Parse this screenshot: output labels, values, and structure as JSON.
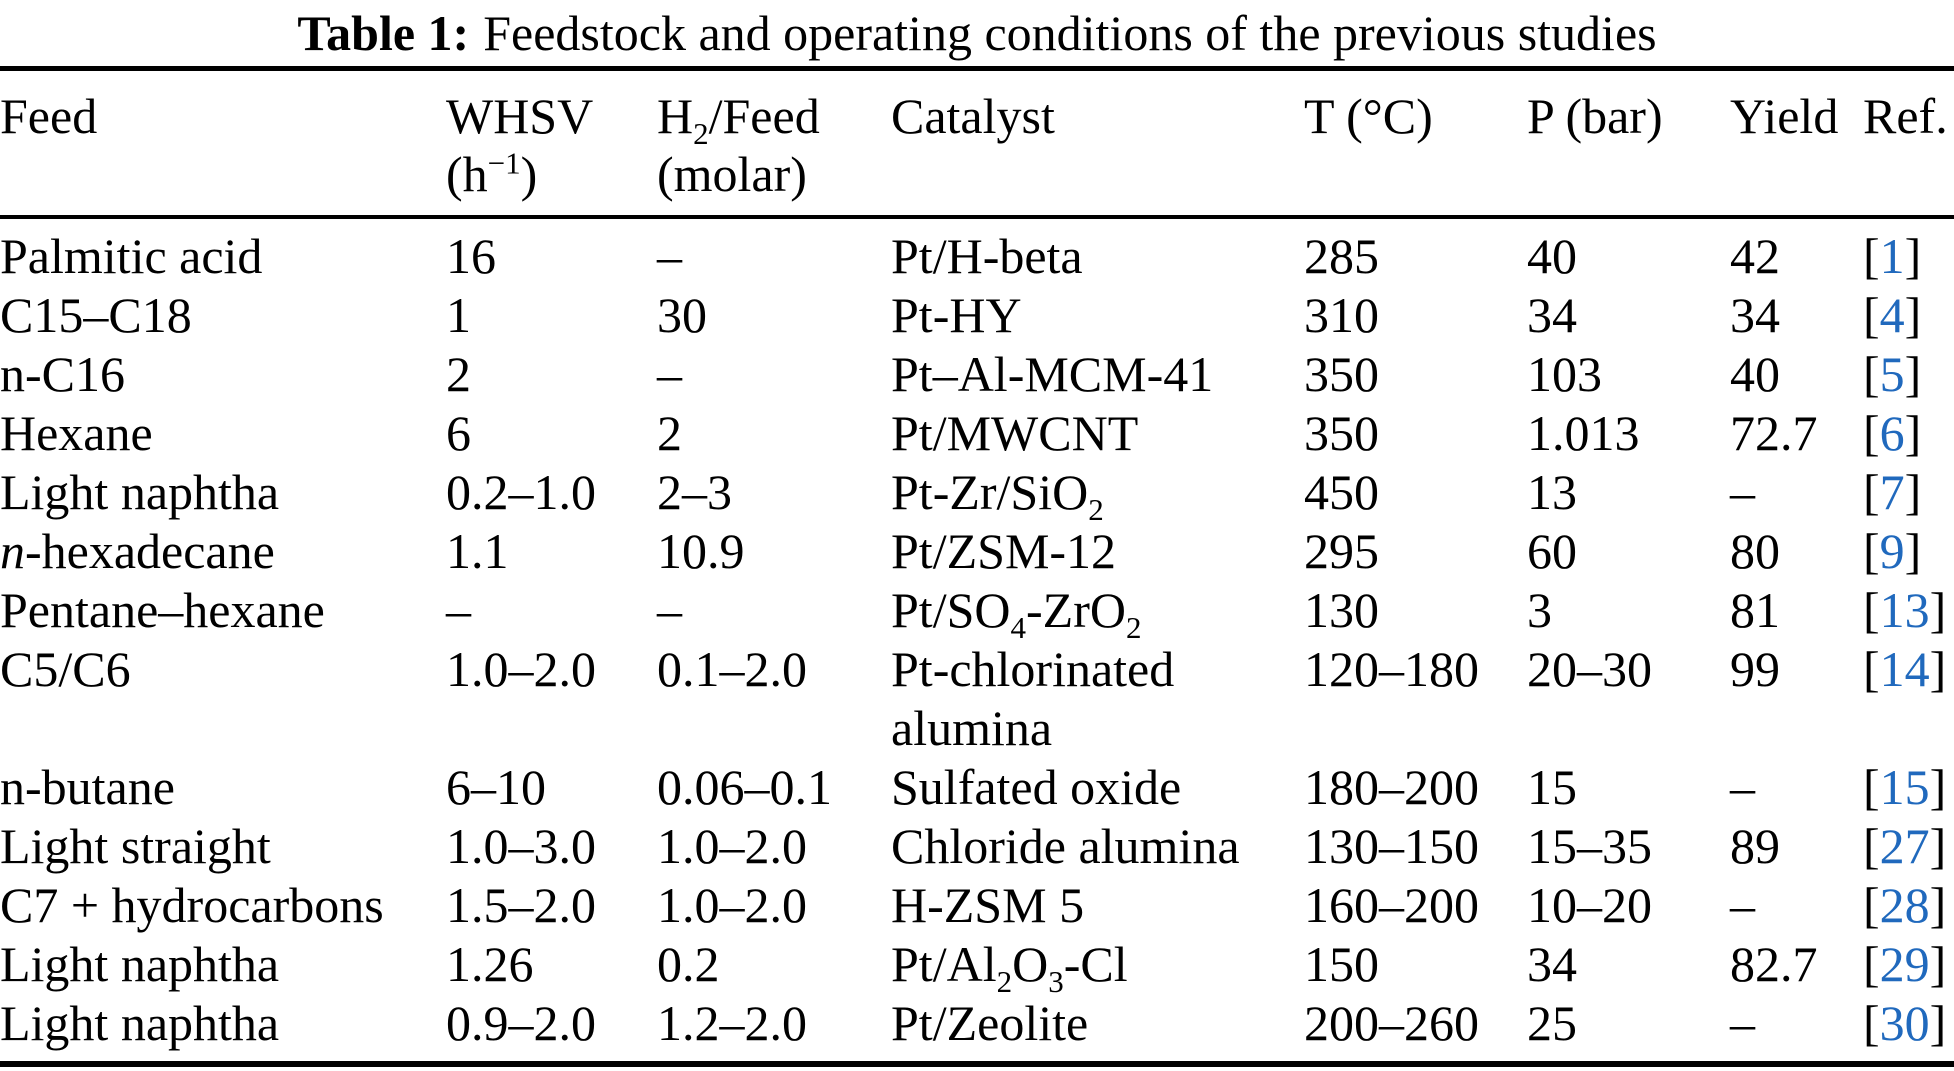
{
  "colors": {
    "background": "#ffffff",
    "text": "#000000",
    "rule": "#000000",
    "ref_accent": "#2069bd"
  },
  "title": {
    "label": "Table 1:",
    "caption": "Feedstock and operating conditions of the previous studies"
  },
  "table": {
    "headers": [
      {
        "key": "feed",
        "line1": "Feed",
        "line2": ""
      },
      {
        "key": "whsv",
        "line1": "WHSV",
        "line2": "(h<sup>−1</sup>)"
      },
      {
        "key": "h2_feed",
        "line1": "H<sub>2</sub>/Feed",
        "line2": "(molar)"
      },
      {
        "key": "catalyst",
        "line1": "Catalyst",
        "line2": ""
      },
      {
        "key": "t_c",
        "line1": "T (°C)",
        "line2": ""
      },
      {
        "key": "p_bar",
        "line1": "P (bar)",
        "line2": ""
      },
      {
        "key": "yield",
        "line1": "Yield",
        "line2": ""
      },
      {
        "key": "ref",
        "line1": "Ref.",
        "line2": ""
      }
    ],
    "rows": [
      {
        "feed": "Palmitic acid",
        "whsv": "16",
        "h2_feed": "–",
        "catalyst": "Pt/H-beta",
        "t_c": "285",
        "p_bar": "40",
        "yield": "42",
        "ref": "1"
      },
      {
        "feed": "C15–C18",
        "whsv": "1",
        "h2_feed": "30",
        "catalyst": "Pt-HY",
        "t_c": "310",
        "p_bar": "34",
        "yield": "34",
        "ref": "4"
      },
      {
        "feed": "n-C16",
        "whsv": "2",
        "h2_feed": "–",
        "catalyst": "Pt–Al-MCM-41",
        "t_c": "350",
        "p_bar": "103",
        "yield": "40",
        "ref": "5"
      },
      {
        "feed": "Hexane",
        "whsv": "6",
        "h2_feed": "2",
        "catalyst": "Pt/MWCNT",
        "t_c": "350",
        "p_bar": "1.013",
        "yield": "72.7",
        "ref": "6"
      },
      {
        "feed": "Light naphtha",
        "whsv": "0.2–1.0",
        "h2_feed": "2–3",
        "catalyst": "Pt-Zr/SiO<sub>2</sub>",
        "t_c": "450",
        "p_bar": "13",
        "yield": "–",
        "ref": "7"
      },
      {
        "feed": "<i>n</i>-hexadecane",
        "whsv": "1.1",
        "h2_feed": "10.9",
        "catalyst": "Pt/ZSM-12",
        "t_c": "295",
        "p_bar": "60",
        "yield": "80",
        "ref": "9"
      },
      {
        "feed": "Pentane–hexane",
        "whsv": "–",
        "h2_feed": "–",
        "catalyst": "Pt/SO<sub>4</sub>-ZrO<sub>2</sub>",
        "t_c": "130",
        "p_bar": "3",
        "yield": "81",
        "ref": "13"
      },
      {
        "feed": "C5/C6",
        "whsv": "1.0–2.0",
        "h2_feed": "0.1–2.0",
        "catalyst": "Pt-chlorinated\nalumina",
        "t_c": "120–180",
        "p_bar": "20–30",
        "yield": "99",
        "ref": "14"
      },
      {
        "feed": "n-butane",
        "whsv": "6–10",
        "h2_feed": "0.06–0.1",
        "catalyst": "Sulfated oxide",
        "t_c": "180–200",
        "p_bar": "15",
        "yield": "–",
        "ref": "15"
      },
      {
        "feed": "Light straight",
        "whsv": "1.0–3.0",
        "h2_feed": "1.0–2.0",
        "catalyst": "Chloride alumina",
        "t_c": "130–150",
        "p_bar": "15–35",
        "yield": "89",
        "ref": "27"
      },
      {
        "feed": "C7 + hydrocarbons",
        "whsv": "1.5–2.0",
        "h2_feed": "1.0–2.0",
        "catalyst": "H-ZSM 5",
        "t_c": "160–200",
        "p_bar": "10–20",
        "yield": "–",
        "ref": "28"
      },
      {
        "feed": "Light naphtha",
        "whsv": "1.26",
        "h2_feed": "0.2",
        "catalyst": "Pt/Al<sub>2</sub>O<sub>3</sub>-Cl",
        "t_c": "150",
        "p_bar": "34",
        "yield": "82.7",
        "ref": "29"
      },
      {
        "feed": "Light naphtha",
        "whsv": "0.9–2.0",
        "h2_feed": "1.2–2.0",
        "catalyst": "Pt/Zeolite",
        "t_c": "200–260",
        "p_bar": "25",
        "yield": "–",
        "ref": "30"
      }
    ]
  }
}
